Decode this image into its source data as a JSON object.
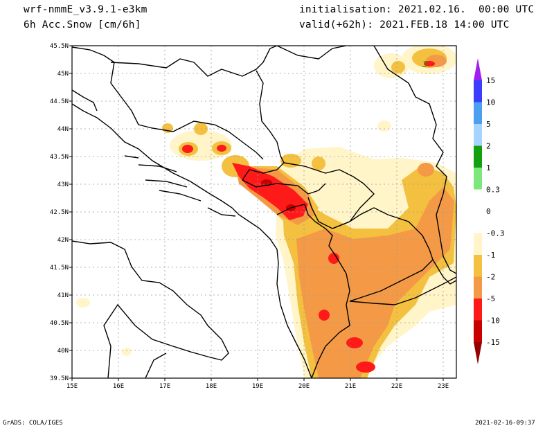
{
  "header": {
    "model": "wrf-nmmE_v3.9.1-e3km",
    "field": "6h Acc.Snow [cm/6h]",
    "init": "initialisation: 2021.02.16.  00:00 UTC",
    "valid": "valid(+62h): 2021.FEB.18 14:00 UTC"
  },
  "map": {
    "lon_labels": [
      "15E",
      "16E",
      "17E",
      "18E",
      "19E",
      "20E",
      "21E",
      "22E",
      "23E"
    ],
    "lat_labels": [
      "45.5N",
      "45N",
      "44.5N",
      "44N",
      "43.5N",
      "43N",
      "42.5N",
      "42N",
      "41.5N",
      "41N",
      "40.5N",
      "40N",
      "39.5N"
    ],
    "extent": {
      "lon": [
        15,
        23.3
      ],
      "lat": [
        39.5,
        45.5
      ]
    }
  },
  "colorbar": {
    "labels": [
      "15",
      "10",
      "5",
      "2",
      "1",
      "0.3",
      "0",
      "-0.3",
      "-1",
      "-2",
      "-5",
      "-10",
      "-15"
    ],
    "bins": [
      {
        "color": "#a020f0"
      },
      {
        "color": "#3c3cff"
      },
      {
        "color": "#4c9ef0"
      },
      {
        "color": "#a6d4ff"
      },
      {
        "color": "#10a010"
      },
      {
        "color": "#7ce87c"
      },
      {
        "color": "#ffffff"
      },
      {
        "color": "#ffffff"
      },
      {
        "color": "#fff5c8"
      },
      {
        "color": "#f4c040"
      },
      {
        "color": "#f49a46"
      },
      {
        "color": "#ff1a1a"
      },
      {
        "color": "#c80000"
      },
      {
        "color": "#960000"
      }
    ]
  },
  "footer": {
    "left": "GrADS: COLA/IGES",
    "right": "2021-02-16-09:37"
  }
}
